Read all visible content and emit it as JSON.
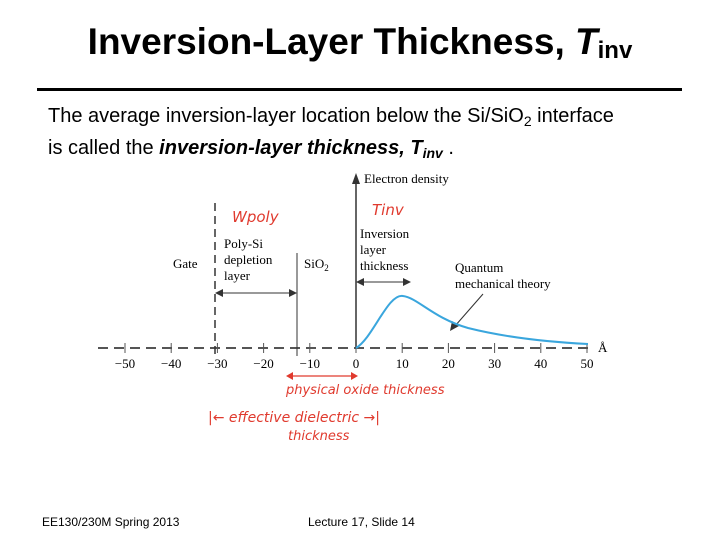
{
  "slide": {
    "title_main": "Inversion-Layer Thickness, ",
    "title_var": "T",
    "title_sub": "inv",
    "body_line1_a": "The average inversion-layer location below the Si/SiO",
    "body_line1_sub": "2",
    "body_line1_b": " interface",
    "body_line2_a": "is called the ",
    "body_line2_em": "inversion-layer thickness, T",
    "body_line2_sub": "inv",
    "body_line2_end": " .",
    "footer_left": "EE130/230M Spring 2013",
    "footer_center": "Lecture 17, Slide 14"
  },
  "figure": {
    "y_axis_label": "Electron density",
    "label_gate": "Gate",
    "label_polysi": "Poly-Si",
    "label_depletion": "depletion",
    "label_layer": "layer",
    "label_sio2": "SiO",
    "label_sio2_sub": "2",
    "label_inversion": "Inversion",
    "label_inv_layer": "layer",
    "label_thickness": "thickness",
    "label_quantum": "Quantum",
    "label_mech": "mechanical theory",
    "unit": "Å",
    "ticks": [
      "−50",
      "−40",
      "−30",
      "−20",
      "−10",
      "0",
      "10",
      "20",
      "30",
      "40",
      "50"
    ],
    "hand_wpoly": "Wpoly",
    "hand_tinv": "Tinv",
    "hand_phys": "physical oxide thickness",
    "hand_eff1": "|← effective dielectric →|",
    "hand_eff2": "thickness"
  },
  "colors": {
    "curve": "#3aa6dd",
    "handwriting": "#e03a2e"
  }
}
